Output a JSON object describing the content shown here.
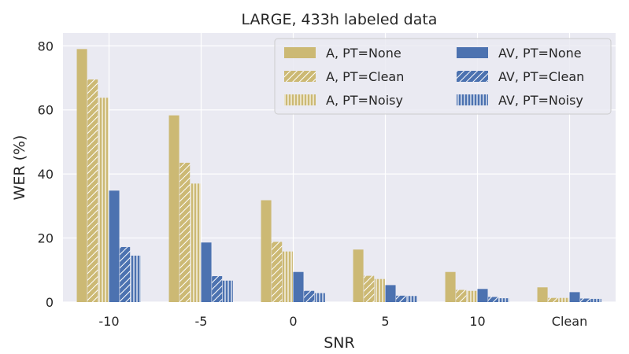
{
  "chart_data": {
    "type": "bar",
    "title": "LARGE, 433h labeled data",
    "xlabel": "SNR",
    "ylabel": "WER (%)",
    "ylim": [
      0,
      84
    ],
    "yticks": [
      0,
      20,
      40,
      60,
      80
    ],
    "grid": true,
    "legend_position": "top-right",
    "categories": [
      "-10",
      "-5",
      "0",
      "5",
      "10",
      "Clean"
    ],
    "series": [
      {
        "name": "A, PT=None",
        "color": "#ccb974",
        "hatch": "none",
        "values": [
          79.0,
          58.3,
          31.8,
          16.4,
          9.4,
          4.6
        ]
      },
      {
        "name": "A, PT=Clean",
        "color": "#ccb974",
        "hatch": "diagonal",
        "values": [
          69.5,
          43.5,
          18.8,
          8.2,
          3.8,
          1.3
        ]
      },
      {
        "name": "A, PT=Noisy",
        "color": "#ccb974",
        "hatch": "vertical",
        "values": [
          63.8,
          37.0,
          15.8,
          7.2,
          3.5,
          1.3
        ]
      },
      {
        "name": "AV, PT=None",
        "color": "#4c72b0",
        "hatch": "none",
        "values": [
          34.8,
          18.6,
          9.4,
          5.3,
          4.1,
          3.1
        ]
      },
      {
        "name": "AV, PT=Clean",
        "color": "#4c72b0",
        "hatch": "diagonal",
        "values": [
          17.2,
          8.1,
          3.5,
          2.0,
          1.6,
          1.1
        ]
      },
      {
        "name": "AV, PT=Noisy",
        "color": "#4c72b0",
        "hatch": "vertical",
        "values": [
          14.5,
          6.7,
          2.8,
          1.9,
          1.2,
          1.0
        ]
      }
    ]
  }
}
